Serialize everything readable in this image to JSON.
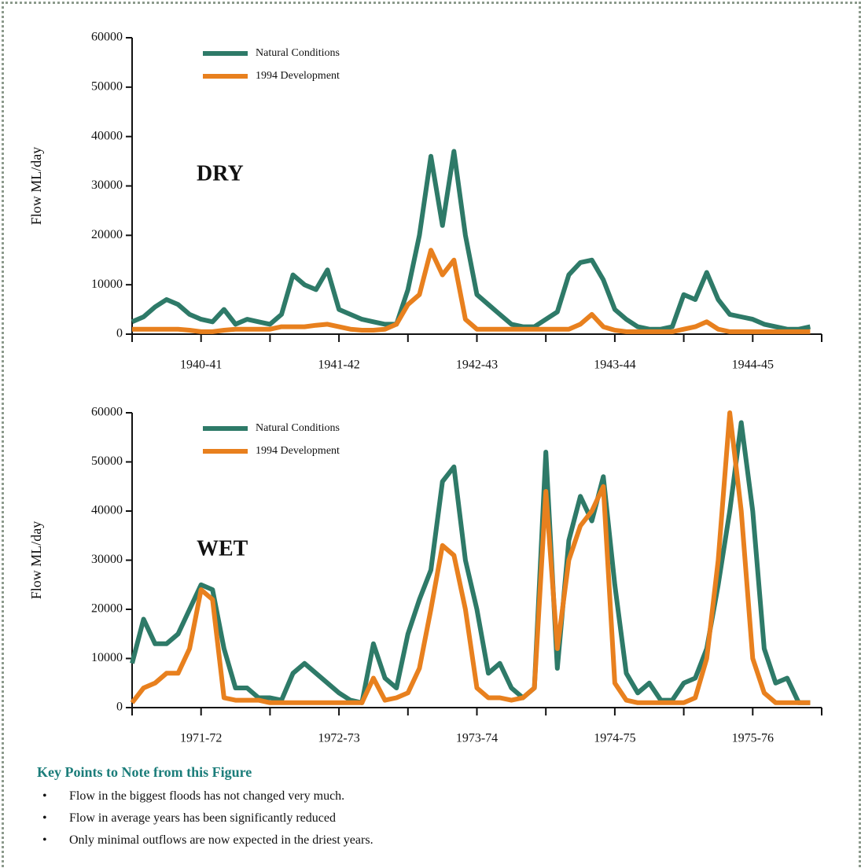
{
  "chart_data": [
    {
      "type": "line",
      "annotation": "DRY",
      "ylabel": "Flow ML/day",
      "x": [
        0,
        1,
        2,
        3,
        4,
        5,
        6,
        7,
        8,
        9,
        10,
        11,
        12,
        13,
        14,
        15,
        16,
        17,
        18,
        19,
        20,
        21,
        22,
        23,
        24,
        25,
        26,
        27,
        28,
        29,
        30,
        31,
        32,
        33,
        34,
        35,
        36,
        37,
        38,
        39,
        40,
        41,
        42,
        43,
        44,
        45,
        46,
        47,
        48,
        49,
        50,
        51,
        52,
        53,
        54,
        55,
        56,
        57,
        58,
        59
      ],
      "series": [
        {
          "name": "Natural Conditions",
          "color": "#2e7a68",
          "values": [
            2500,
            3500,
            5500,
            7000,
            6000,
            4000,
            3000,
            2500,
            5000,
            2000,
            3000,
            2500,
            2000,
            4000,
            12000,
            10000,
            9000,
            13000,
            5000,
            4000,
            3000,
            2500,
            2000,
            2000,
            9000,
            20000,
            36000,
            22000,
            37000,
            20000,
            8000,
            6000,
            4000,
            2000,
            1500,
            1500,
            3000,
            4500,
            12000,
            14500,
            15000,
            11000,
            5000,
            3000,
            1500,
            1000,
            1000,
            1500,
            8000,
            7000,
            12500,
            7000,
            4000,
            3500,
            3000,
            2000,
            1500,
            1000,
            1000,
            1500
          ]
        },
        {
          "name": "1994 Development",
          "color": "#e8801e",
          "values": [
            1000,
            1000,
            1000,
            1000,
            1000,
            800,
            500,
            500,
            800,
            1000,
            1000,
            1000,
            1000,
            1500,
            1500,
            1500,
            1800,
            2000,
            1500,
            1000,
            800,
            800,
            1000,
            2000,
            6000,
            8000,
            17000,
            12000,
            15000,
            3000,
            1000,
            1000,
            1000,
            1000,
            1000,
            1000,
            1000,
            1000,
            1000,
            2000,
            4000,
            1500,
            800,
            500,
            500,
            500,
            500,
            500,
            1000,
            1500,
            2500,
            1000,
            500,
            500,
            500,
            500,
            500,
            500,
            500,
            500
          ]
        }
      ],
      "xlim": [
        0,
        60
      ],
      "xticks": [
        {
          "value": 6,
          "label": "1940-41"
        },
        {
          "value": 18,
          "label": "1941-42"
        },
        {
          "value": 30,
          "label": "1942-43"
        },
        {
          "value": 42,
          "label": "1943-44"
        },
        {
          "value": 54,
          "label": "1944-45"
        }
      ],
      "x_minor_ticks": [
        0,
        12,
        24,
        36,
        48,
        60
      ],
      "ylim": [
        0,
        60000
      ],
      "yticks": [
        0,
        10000,
        20000,
        30000,
        40000,
        50000,
        60000
      ],
      "grid": false,
      "legend": "upper left"
    },
    {
      "type": "line",
      "annotation": "WET",
      "ylabel": "Flow ML/day",
      "x": [
        0,
        1,
        2,
        3,
        4,
        5,
        6,
        7,
        8,
        9,
        10,
        11,
        12,
        13,
        14,
        15,
        16,
        17,
        18,
        19,
        20,
        21,
        22,
        23,
        24,
        25,
        26,
        27,
        28,
        29,
        30,
        31,
        32,
        33,
        34,
        35,
        36,
        37,
        38,
        39,
        40,
        41,
        42,
        43,
        44,
        45,
        46,
        47,
        48,
        49,
        50,
        51,
        52,
        53,
        54,
        55,
        56,
        57,
        58,
        59
      ],
      "series": [
        {
          "name": "Natural Conditions",
          "color": "#2e7a68",
          "values": [
            9000,
            18000,
            13000,
            13000,
            15000,
            20000,
            25000,
            24000,
            12000,
            4000,
            4000,
            2000,
            2000,
            1500,
            7000,
            9000,
            7000,
            5000,
            3000,
            1500,
            1000,
            13000,
            6000,
            4000,
            15000,
            22000,
            28000,
            46000,
            49000,
            30000,
            20000,
            7000,
            9000,
            4000,
            2000,
            4000,
            52000,
            8000,
            34000,
            43000,
            38000,
            47000,
            25000,
            7000,
            3000,
            5000,
            1500,
            1500,
            5000,
            6000,
            12000,
            25000,
            40000,
            58000,
            40000,
            12000,
            5000,
            6000,
            1000,
            1000
          ]
        },
        {
          "name": "1994 Development",
          "color": "#e8801e",
          "values": [
            1000,
            4000,
            5000,
            7000,
            7000,
            12000,
            24000,
            22000,
            2000,
            1500,
            1500,
            1500,
            1000,
            1000,
            1000,
            1000,
            1000,
            1000,
            1000,
            1000,
            1000,
            6000,
            1500,
            2000,
            3000,
            8000,
            20000,
            33000,
            31000,
            20000,
            4000,
            2000,
            2000,
            1500,
            2000,
            4000,
            44000,
            12000,
            30000,
            37000,
            40000,
            45000,
            5000,
            1500,
            1000,
            1000,
            1000,
            1000,
            1000,
            2000,
            10000,
            30000,
            60000,
            40000,
            10000,
            3000,
            1000,
            1000,
            1000,
            1000
          ]
        }
      ],
      "xlim": [
        0,
        60
      ],
      "xticks": [
        {
          "value": 6,
          "label": "1971-72"
        },
        {
          "value": 18,
          "label": "1972-73"
        },
        {
          "value": 30,
          "label": "1973-74"
        },
        {
          "value": 42,
          "label": "1974-75"
        },
        {
          "value": 54,
          "label": "1975-76"
        }
      ],
      "x_minor_ticks": [
        0,
        12,
        24,
        36,
        48,
        60
      ],
      "ylim": [
        0,
        60000
      ],
      "yticks": [
        0,
        10000,
        20000,
        30000,
        40000,
        50000,
        60000
      ],
      "grid": false,
      "legend": "upper left"
    }
  ],
  "key_points": {
    "title": "Key Points to Note from this Figure",
    "items": [
      "Flow in the biggest floods has not changed very much.",
      "Flow in average years has been significantly reduced",
      "Only minimal outflows are now expected in the driest years."
    ]
  }
}
